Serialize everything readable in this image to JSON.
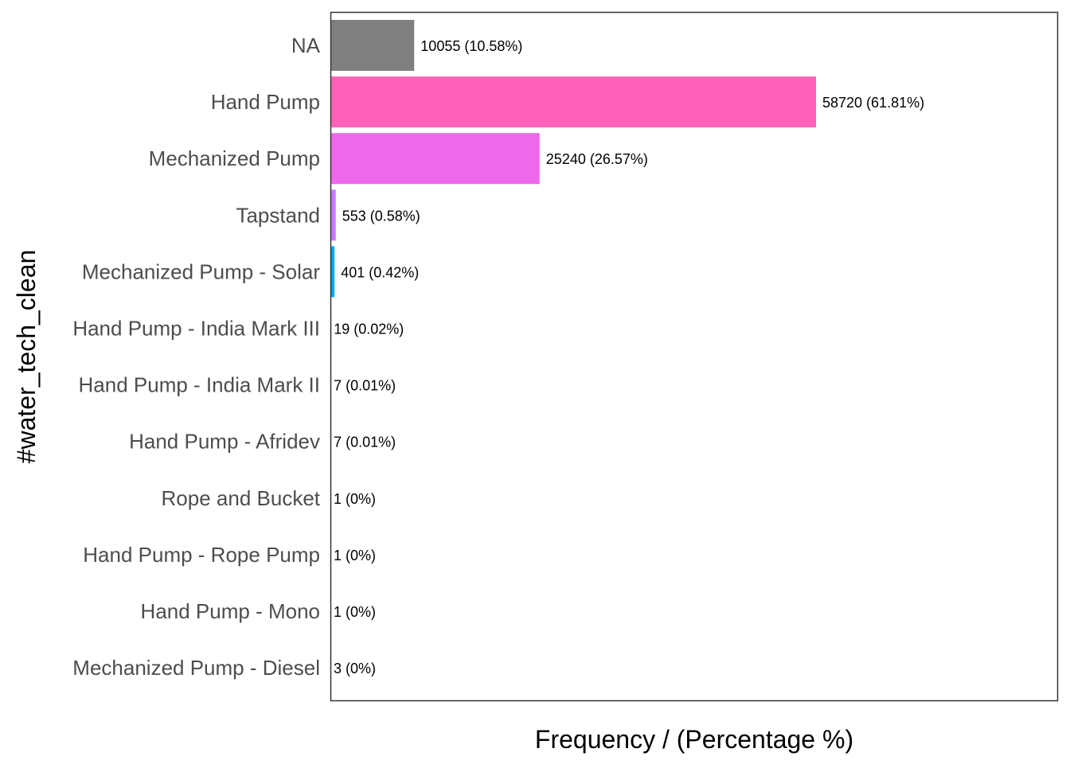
{
  "chart_data": {
    "type": "bar",
    "orientation": "horizontal",
    "xlabel": "Frequency / (Percentage %)",
    "ylabel": "#water_tech_clean",
    "xlim": [
      0,
      70000
    ],
    "grid": false,
    "legend": "none",
    "categories": [
      "NA",
      "Hand Pump",
      "Mechanized Pump",
      "Tapstand",
      "Mechanized Pump - Solar",
      "Hand Pump - India Mark III",
      "Hand Pump - India Mark II",
      "Hand Pump - Afridev",
      "Rope and Bucket",
      "Hand Pump - Rope Pump",
      "Hand Pump - Mono",
      "Mechanized Pump - Diesel"
    ],
    "values": [
      10055,
      58720,
      25240,
      553,
      401,
      19,
      7,
      7,
      1,
      1,
      1,
      3
    ],
    "data_labels": [
      "10055 (10.58%)",
      "58720 (61.81%)",
      "25240 (26.57%)",
      "553 (0.58%)",
      "401 (0.42%)",
      "19 (0.02%)",
      "7 (0.01%)",
      "7 (0.01%)",
      "1 (0%)",
      "1 (0%)",
      "1 (0%)",
      "3 (0%)"
    ],
    "colors": [
      "#7f7f7f",
      "#ff61b9",
      "#ef67eb",
      "#c77cff",
      "#00a9ff",
      "#00bfc4",
      "#00c08b",
      "#00be67",
      "#7cae00",
      "#a3a500",
      "#cd9600",
      "#e68613"
    ]
  }
}
